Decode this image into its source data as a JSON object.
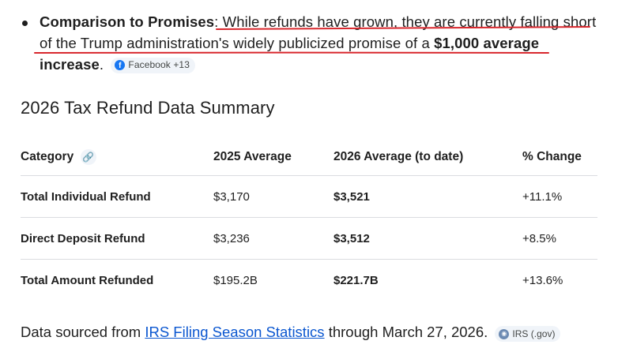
{
  "bullet": {
    "label": "Comparison to Promises",
    "colon": ":",
    "text_part1": "While refunds have grown, they are currently falling short of the Trump administration's widely publicized promise of a ",
    "bold_amount": "$1,000 average increase",
    "period": ".",
    "source_chip": "Facebook +13",
    "source_icon": "facebook-icon"
  },
  "section": {
    "title": "2026 Tax Refund Data Summary"
  },
  "table": {
    "headers": {
      "category": "Category",
      "y2025": "2025 Average",
      "y2026": "2026 Average (to date)",
      "change": "% Change"
    },
    "rows": [
      {
        "category": "Total Individual Refund",
        "y2025": "$3,170",
        "y2026": "$3,521",
        "change": "+11.1%"
      },
      {
        "category": "Direct Deposit Refund",
        "y2025": "$3,236",
        "y2026": "$3,512",
        "change": "+8.5%"
      },
      {
        "category": "Total Amount Refunded",
        "y2025": "$195.2B",
        "y2026": "$221.7B",
        "change": "+13.6%"
      }
    ]
  },
  "footer": {
    "prefix": "Data sourced from ",
    "link_text": "IRS Filing Season Statistics",
    "suffix": " through March 27, 2026.",
    "source_chip": "IRS (.gov)",
    "source_icon": "irs-seal-icon"
  },
  "colors": {
    "link": "#0b57d0",
    "annotation_underline": "#d8262c",
    "facebook": "#1877f2"
  }
}
